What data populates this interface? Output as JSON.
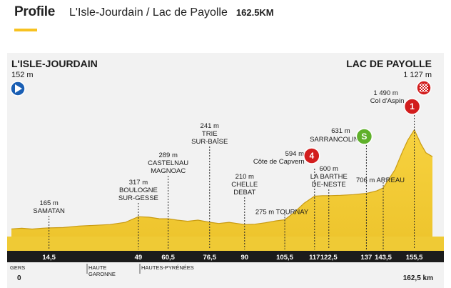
{
  "header": {
    "title": "Profile",
    "route": "L'Isle-Jourdain / Lac de Payolle",
    "distance": "162.5KM"
  },
  "colors": {
    "terrain": "#f5cf3a",
    "terrain_dark": "#c99b12",
    "accent": "#f7c221",
    "km_bar": "#1c1c1c",
    "start_marker": "#1a5fb4",
    "climb_marker": "#d21d1d",
    "sprint_marker": "#5fb02a"
  },
  "start": {
    "name": "L'ISLE-JOURDAIN",
    "altitude": "152 m",
    "icon": "play-arrow-icon"
  },
  "finish": {
    "name": "LAC DE PAYOLLE",
    "altitude": "1 127 m",
    "icon": "checkered-flag-icon"
  },
  "chart_data": {
    "type": "area",
    "title": "Profile",
    "xlabel": "",
    "ylabel": "",
    "xlim": [
      0,
      162.5
    ],
    "unit_x": "km",
    "unit_y": "m",
    "profile": [
      [
        0,
        152
      ],
      [
        4,
        160
      ],
      [
        8,
        150
      ],
      [
        12,
        160
      ],
      [
        14.5,
        165
      ],
      [
        20,
        170
      ],
      [
        26,
        190
      ],
      [
        32,
        200
      ],
      [
        38,
        210
      ],
      [
        44,
        240
      ],
      [
        49,
        317
      ],
      [
        53,
        310
      ],
      [
        57,
        290
      ],
      [
        60.5,
        289
      ],
      [
        64,
        270
      ],
      [
        68,
        255
      ],
      [
        72,
        270
      ],
      [
        76.5,
        241
      ],
      [
        80,
        225
      ],
      [
        84,
        240
      ],
      [
        88,
        220
      ],
      [
        90,
        210
      ],
      [
        94,
        215
      ],
      [
        98,
        235
      ],
      [
        102,
        260
      ],
      [
        105.5,
        275
      ],
      [
        109,
        370
      ],
      [
        113,
        500
      ],
      [
        117,
        594
      ],
      [
        120,
        600
      ],
      [
        122.5,
        600
      ],
      [
        127,
        605
      ],
      [
        132,
        615
      ],
      [
        137,
        631
      ],
      [
        141,
        665
      ],
      [
        143.5,
        706
      ],
      [
        148,
        950
      ],
      [
        151,
        1200
      ],
      [
        153,
        1350
      ],
      [
        155.5,
        1490
      ],
      [
        158,
        1300
      ],
      [
        160,
        1180
      ],
      [
        162.5,
        1127
      ]
    ],
    "km_ticks": [
      {
        "label": "14,5",
        "km": 14.5
      },
      {
        "label": "49",
        "km": 49
      },
      {
        "label": "60,5",
        "km": 60.5
      },
      {
        "label": "76,5",
        "km": 76.5
      },
      {
        "label": "90",
        "km": 90
      },
      {
        "label": "105,5",
        "km": 105.5
      },
      {
        "label": "117",
        "km": 117
      },
      {
        "label": "122,5",
        "km": 122.5
      },
      {
        "label": "137",
        "km": 137
      },
      {
        "label": "143,5",
        "km": 143.5
      },
      {
        "label": "155,5",
        "km": 155.5
      }
    ],
    "waypoints": [
      {
        "km": 14.5,
        "altitude": "165 m",
        "name": [
          "SAMATAN"
        ]
      },
      {
        "km": 49,
        "altitude": "317 m",
        "name": [
          "BOULOGNE",
          "SUR-GESSE"
        ]
      },
      {
        "km": 60.5,
        "altitude": "289 m",
        "name": [
          "CASTELNAU",
          "MAGNOAC"
        ]
      },
      {
        "km": 76.5,
        "altitude": "241 m",
        "name": [
          "TRIE",
          "SUR-BAÏSE"
        ]
      },
      {
        "km": 90,
        "altitude": "210 m",
        "name": [
          "CHELLE",
          "DEBAT"
        ]
      },
      {
        "km": 105.5,
        "altitude": "275 m",
        "name": [
          "TOURNAY"
        ],
        "inline": true
      },
      {
        "km": 117,
        "altitude": "594 m",
        "name": [
          "Côte de Capvern"
        ],
        "climb_category": "4"
      },
      {
        "km": 122.5,
        "altitude": "600 m",
        "name": [
          "LA BARTHE",
          "DE-NESTE"
        ]
      },
      {
        "km": 137,
        "altitude": "631 m",
        "name": [
          "SARRANCOLIN"
        ],
        "sprint": "S"
      },
      {
        "km": 143.5,
        "altitude": "706 m",
        "name": [
          "ARREAU"
        ],
        "inline": true
      },
      {
        "km": 155.5,
        "altitude": "1 490 m",
        "name": [
          "Col d'Aspin"
        ],
        "climb_category": "1"
      }
    ],
    "regions": [
      "GERS",
      "HAUTE",
      "GARONNE",
      "HAUTES-PYRÉNÉES"
    ],
    "axis_start": "0",
    "axis_end": "162,5 km"
  }
}
